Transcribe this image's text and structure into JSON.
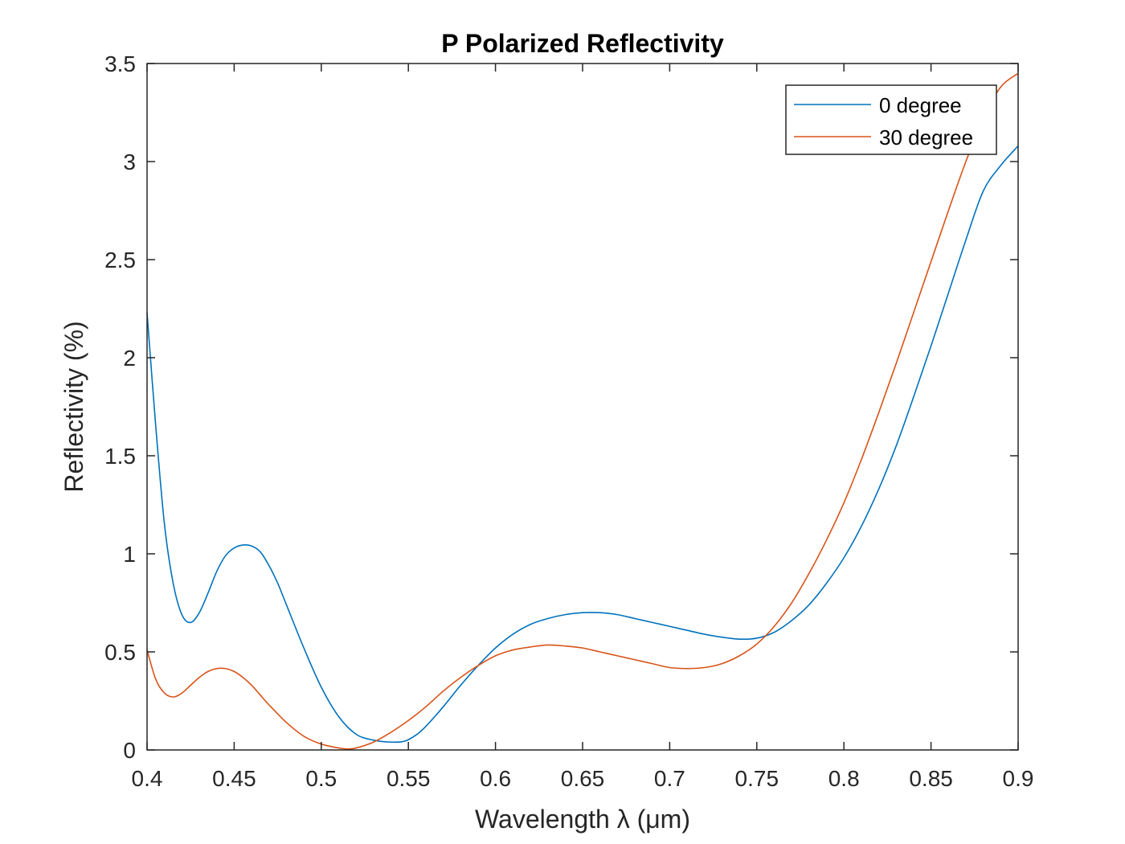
{
  "chart_data": {
    "type": "line",
    "title": "P Polarized Reflectivity",
    "xlabel": "Wavelength λ (μm)",
    "ylabel": "Reflectivity (%)",
    "xlim": [
      0.4,
      0.9
    ],
    "ylim": [
      0,
      3.5
    ],
    "xticks": [
      "0.4",
      "0.45",
      "0.5",
      "0.55",
      "0.6",
      "0.65",
      "0.7",
      "0.75",
      "0.8",
      "0.85",
      "0.9"
    ],
    "yticks": [
      "0",
      "0.5",
      "1",
      "1.5",
      "2",
      "2.5",
      "3",
      "3.5"
    ],
    "grid": false,
    "legend_position": "top-right",
    "series": [
      {
        "name": "0 degree",
        "color": "#0072BD",
        "x": [
          0.4,
          0.405,
          0.41,
          0.415,
          0.42,
          0.425,
          0.43,
          0.435,
          0.44,
          0.445,
          0.45,
          0.455,
          0.46,
          0.465,
          0.47,
          0.475,
          0.48,
          0.49,
          0.5,
          0.51,
          0.52,
          0.53,
          0.54,
          0.548,
          0.555,
          0.56,
          0.57,
          0.58,
          0.59,
          0.6,
          0.61,
          0.62,
          0.63,
          0.64,
          0.65,
          0.66,
          0.67,
          0.68,
          0.69,
          0.7,
          0.71,
          0.72,
          0.73,
          0.74,
          0.75,
          0.76,
          0.77,
          0.78,
          0.79,
          0.8,
          0.81,
          0.82,
          0.83,
          0.84,
          0.85,
          0.86,
          0.87,
          0.88,
          0.89,
          0.9
        ],
        "y": [
          2.23,
          1.65,
          1.15,
          0.85,
          0.69,
          0.65,
          0.7,
          0.8,
          0.91,
          0.99,
          1.03,
          1.045,
          1.04,
          1.01,
          0.94,
          0.85,
          0.74,
          0.52,
          0.32,
          0.17,
          0.08,
          0.05,
          0.04,
          0.045,
          0.08,
          0.12,
          0.22,
          0.33,
          0.43,
          0.52,
          0.59,
          0.64,
          0.67,
          0.69,
          0.7,
          0.7,
          0.69,
          0.67,
          0.65,
          0.63,
          0.61,
          0.59,
          0.575,
          0.565,
          0.57,
          0.6,
          0.66,
          0.74,
          0.85,
          0.98,
          1.14,
          1.33,
          1.55,
          1.8,
          2.06,
          2.33,
          2.6,
          2.85,
          2.98,
          3.08
        ]
      },
      {
        "name": "30 degree",
        "color": "#D95319",
        "x": [
          0.4,
          0.405,
          0.41,
          0.415,
          0.42,
          0.425,
          0.43,
          0.435,
          0.44,
          0.445,
          0.45,
          0.455,
          0.46,
          0.465,
          0.47,
          0.48,
          0.49,
          0.5,
          0.51,
          0.515,
          0.52,
          0.53,
          0.54,
          0.55,
          0.56,
          0.57,
          0.58,
          0.59,
          0.6,
          0.61,
          0.62,
          0.63,
          0.64,
          0.65,
          0.66,
          0.67,
          0.68,
          0.69,
          0.7,
          0.71,
          0.72,
          0.73,
          0.74,
          0.75,
          0.76,
          0.77,
          0.78,
          0.79,
          0.8,
          0.81,
          0.82,
          0.83,
          0.84,
          0.85,
          0.86,
          0.87,
          0.88,
          0.89,
          0.9
        ],
        "y": [
          0.51,
          0.36,
          0.29,
          0.27,
          0.29,
          0.33,
          0.37,
          0.4,
          0.415,
          0.415,
          0.4,
          0.37,
          0.33,
          0.28,
          0.23,
          0.14,
          0.07,
          0.03,
          0.01,
          0.005,
          0.01,
          0.04,
          0.09,
          0.15,
          0.22,
          0.3,
          0.37,
          0.43,
          0.48,
          0.51,
          0.525,
          0.535,
          0.53,
          0.52,
          0.5,
          0.48,
          0.46,
          0.44,
          0.42,
          0.415,
          0.42,
          0.44,
          0.48,
          0.54,
          0.63,
          0.75,
          0.9,
          1.07,
          1.26,
          1.48,
          1.72,
          1.97,
          2.23,
          2.49,
          2.75,
          3.0,
          3.22,
          3.38,
          3.45
        ]
      }
    ]
  }
}
